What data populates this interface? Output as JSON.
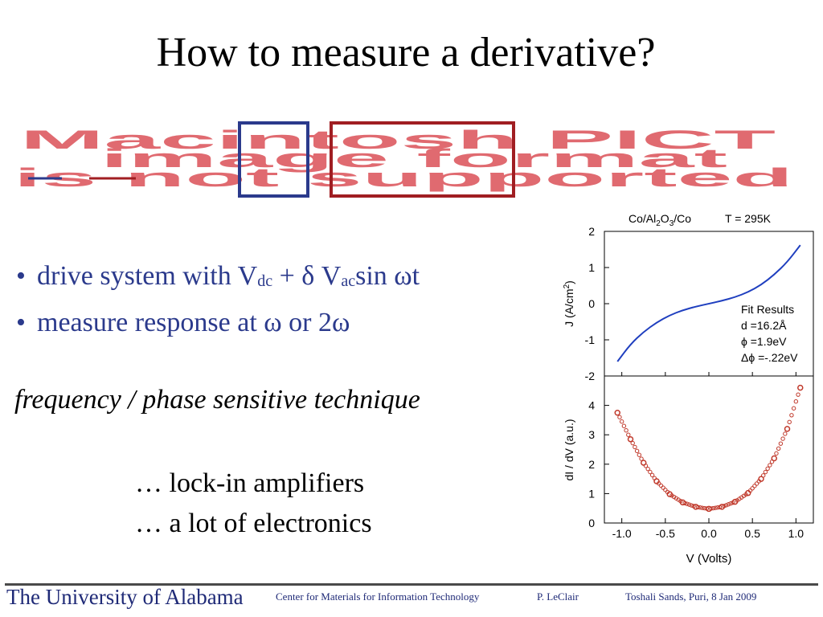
{
  "title": "How to measure a derivative?",
  "placeholder_image": {
    "lines": [
      "Macintosh PICT",
      "image format",
      "is not supported"
    ],
    "colors": {
      "text": "#e06a70",
      "box_blue": "#2b3a8c",
      "box_red": "#a01e22"
    }
  },
  "bullets": {
    "b1": {
      "text_a": "drive system with V",
      "sub_dc": "dc",
      "text_b": " + δ V",
      "sub_ac": "ac",
      "text_c": "sin ωt"
    },
    "b2": {
      "text": "measure response at ω or 2ω"
    }
  },
  "technique": "frequency / phase sensitive technique",
  "notes": [
    "… lock-in amplifiers",
    "… a lot of electronics"
  ],
  "footer": {
    "university": "The University of Alabama",
    "center": "Center for Materials for Information Technology",
    "author": "P. LeClair",
    "credit": "Toshali Sands, Puri, 8 Jan 2009"
  },
  "chart_data": [
    {
      "type": "line",
      "title_parts": {
        "pre": "Co/Al",
        "s1": "2",
        "mid": "O",
        "s2": "3",
        "post": "/Co",
        "temp": "T = 295K"
      },
      "ylabel_pre": "J (A/cm",
      "ylabel_sup": "2",
      "ylabel_post": ")",
      "ylim": [
        -2,
        2
      ],
      "yticks": [
        "2",
        "1",
        "0",
        "-1",
        "-2"
      ],
      "xlim": [
        -1.2,
        1.2
      ],
      "series": [
        {
          "color": "#1f3fbf",
          "x": [
            -1.05,
            -0.9,
            -0.75,
            -0.6,
            -0.45,
            -0.3,
            -0.15,
            0,
            0.15,
            0.3,
            0.45,
            0.6,
            0.75,
            0.9,
            1.05
          ],
          "y": [
            -1.6,
            -1.12,
            -0.78,
            -0.52,
            -0.32,
            -0.18,
            -0.08,
            0,
            0.08,
            0.18,
            0.32,
            0.52,
            0.8,
            1.15,
            1.62
          ]
        }
      ],
      "legend_title": "Fit Results",
      "legend_lines": [
        "d =16.2Å",
        "ϕ =1.9eV",
        "Δϕ =-.22eV"
      ]
    },
    {
      "type": "scatter",
      "ylabel": "dI / dV (a.u.)",
      "xlabel": "V (Volts)",
      "ylim": [
        0,
        5
      ],
      "yticks": [
        "4",
        "3",
        "2",
        "1",
        "0"
      ],
      "xlim": [
        -1.2,
        1.2
      ],
      "xticks": [
        "-1.0",
        "-0.5",
        "0.0",
        "0.5",
        "1.0"
      ],
      "series": [
        {
          "color": "#c0392b",
          "x": [
            -1.05,
            -0.9,
            -0.75,
            -0.6,
            -0.45,
            -0.3,
            -0.15,
            0,
            0.15,
            0.3,
            0.45,
            0.6,
            0.75,
            0.9,
            1.05
          ],
          "y": [
            3.75,
            2.85,
            2.05,
            1.42,
            0.98,
            0.7,
            0.55,
            0.48,
            0.55,
            0.72,
            1.02,
            1.5,
            2.2,
            3.2,
            4.6
          ]
        }
      ]
    }
  ]
}
